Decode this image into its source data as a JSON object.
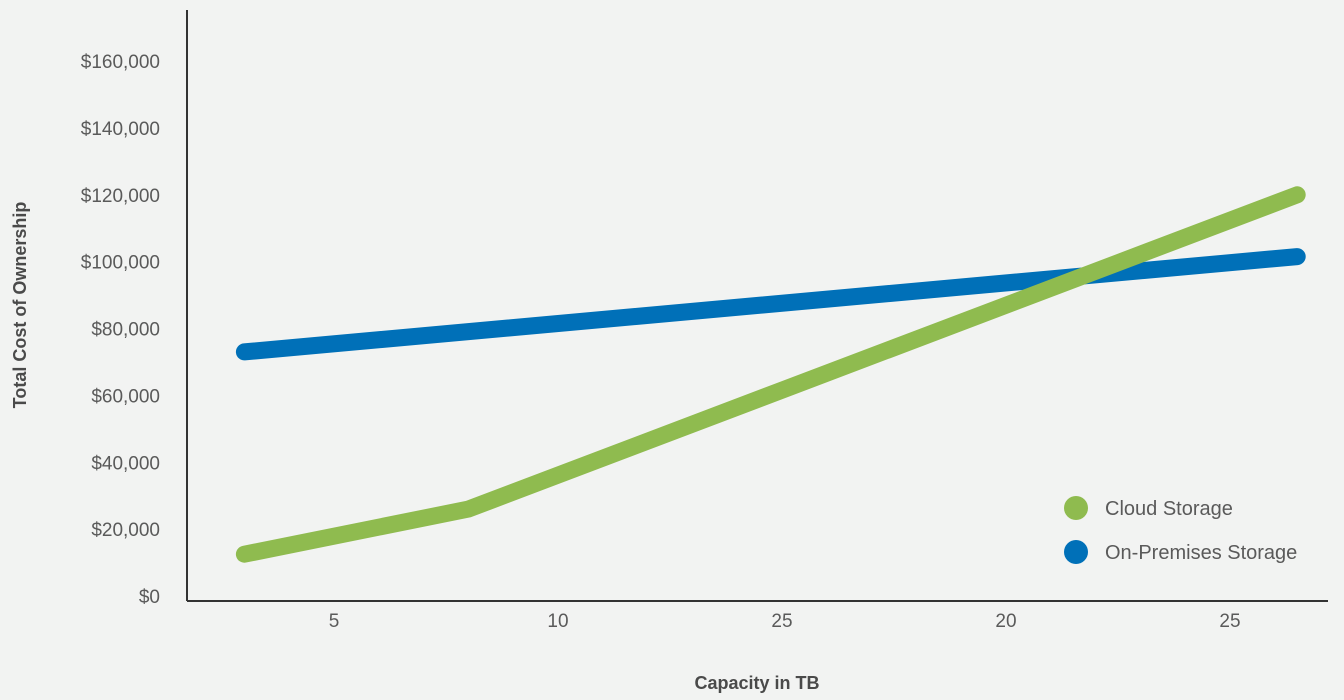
{
  "chart_data": {
    "type": "line",
    "categories": [
      "5",
      "10",
      "25",
      "20",
      "25"
    ],
    "x_positions": [
      0,
      1,
      2,
      3,
      4
    ],
    "series": [
      {
        "name": "Cloud Storage",
        "color": "#8fbb4f",
        "points": [
          [
            -0.4,
            12500
          ],
          [
            0.6,
            26000
          ],
          [
            4.3,
            120000
          ]
        ]
      },
      {
        "name": "On-Premises Storage",
        "color": "#0070b8",
        "points": [
          [
            -0.4,
            73000
          ],
          [
            4.3,
            101500
          ]
        ]
      }
    ],
    "y_ticks": [
      "$0",
      "$20,000",
      "$40,000",
      "$60,000",
      "$80,000",
      "$100,000",
      "$120,000",
      "$140,000",
      "$160,000"
    ],
    "ylim": [
      0,
      160000
    ],
    "xlabel": "Capacity in TB",
    "ylabel": "Total Cost of Ownership",
    "grid": false,
    "legend_position": "bottom-right"
  }
}
